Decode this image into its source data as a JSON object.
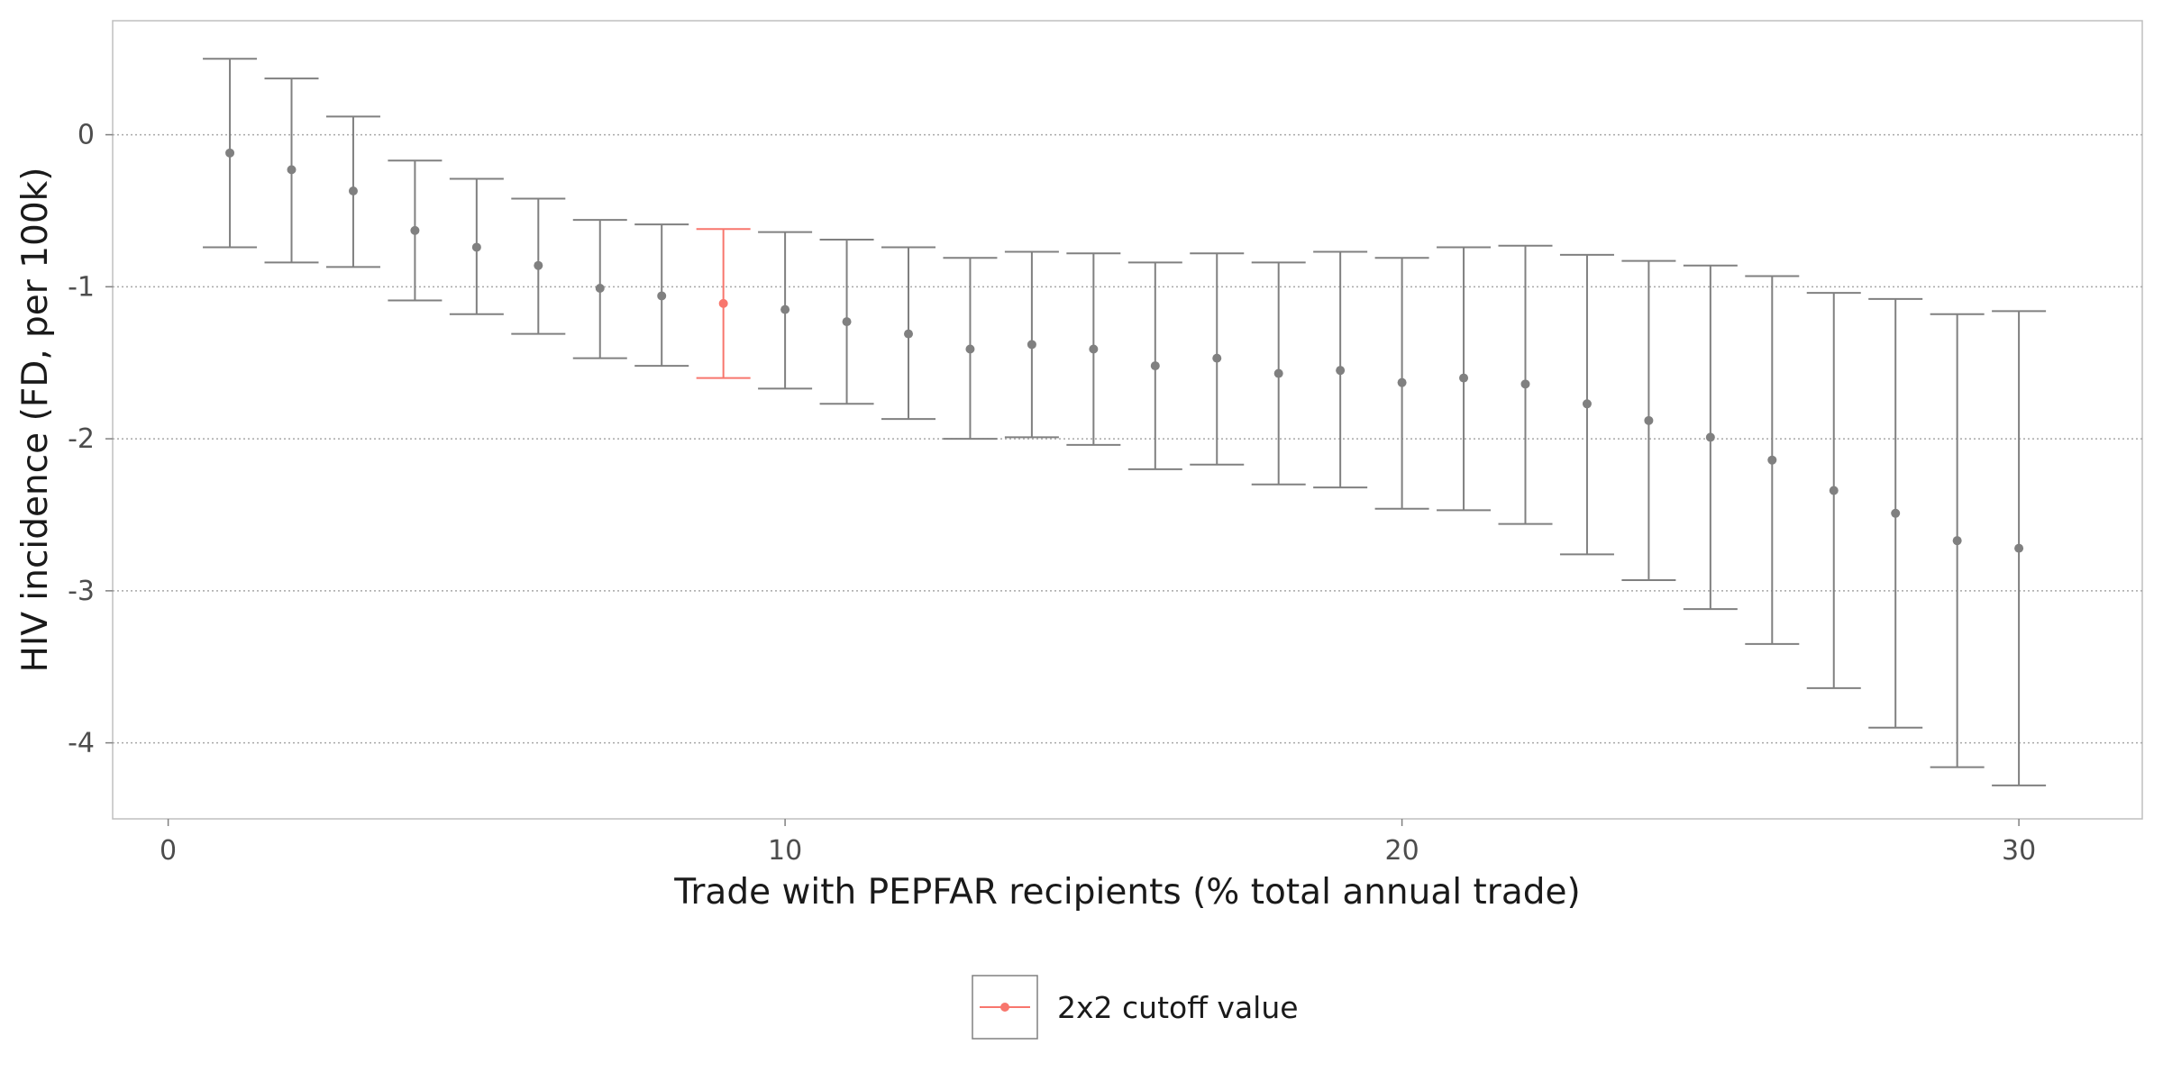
{
  "chart_data": {
    "type": "errorbar",
    "title": "",
    "xlabel": "Trade with PEPFAR recipients (% total annual trade)",
    "ylabel": "HIV incidence (FD, per 100k)",
    "xlim": [
      -0.9,
      32
    ],
    "ylim": [
      -4.5,
      0.75
    ],
    "x_ticks": [
      0,
      10,
      20,
      30
    ],
    "y_ticks": [
      0,
      -1,
      -2,
      -3,
      -4
    ],
    "grid": "horizontal dotted at major y ticks",
    "legend": {
      "position": "bottom-center",
      "entries": [
        "2x2 cutoff value"
      ]
    },
    "highlight_x": 9,
    "colors": {
      "normal": "#808080",
      "highlight": "#f8766d",
      "grid": "#a8a8a8",
      "panel_border": "#bfbfbf"
    },
    "points": [
      {
        "x": 1,
        "y": -0.12,
        "lower": -0.74,
        "upper": 0.5
      },
      {
        "x": 2,
        "y": -0.23,
        "lower": -0.84,
        "upper": 0.37
      },
      {
        "x": 3,
        "y": -0.37,
        "lower": -0.87,
        "upper": 0.12
      },
      {
        "x": 4,
        "y": -0.63,
        "lower": -1.09,
        "upper": -0.17
      },
      {
        "x": 5,
        "y": -0.74,
        "lower": -1.18,
        "upper": -0.29
      },
      {
        "x": 6,
        "y": -0.86,
        "lower": -1.31,
        "upper": -0.42
      },
      {
        "x": 7,
        "y": -1.01,
        "lower": -1.47,
        "upper": -0.56
      },
      {
        "x": 8,
        "y": -1.06,
        "lower": -1.52,
        "upper": -0.59
      },
      {
        "x": 9,
        "y": -1.11,
        "lower": -1.6,
        "upper": -0.62
      },
      {
        "x": 10,
        "y": -1.15,
        "lower": -1.67,
        "upper": -0.64
      },
      {
        "x": 11,
        "y": -1.23,
        "lower": -1.77,
        "upper": -0.69
      },
      {
        "x": 12,
        "y": -1.31,
        "lower": -1.87,
        "upper": -0.74
      },
      {
        "x": 13,
        "y": -1.41,
        "lower": -2.0,
        "upper": -0.81
      },
      {
        "x": 14,
        "y": -1.38,
        "lower": -1.99,
        "upper": -0.77
      },
      {
        "x": 15,
        "y": -1.41,
        "lower": -2.04,
        "upper": -0.78
      },
      {
        "x": 16,
        "y": -1.52,
        "lower": -2.2,
        "upper": -0.84
      },
      {
        "x": 17,
        "y": -1.47,
        "lower": -2.17,
        "upper": -0.78
      },
      {
        "x": 18,
        "y": -1.57,
        "lower": -2.3,
        "upper": -0.84
      },
      {
        "x": 19,
        "y": -1.55,
        "lower": -2.32,
        "upper": -0.77
      },
      {
        "x": 20,
        "y": -1.63,
        "lower": -2.46,
        "upper": -0.81
      },
      {
        "x": 21,
        "y": -1.6,
        "lower": -2.47,
        "upper": -0.74
      },
      {
        "x": 22,
        "y": -1.64,
        "lower": -2.56,
        "upper": -0.73
      },
      {
        "x": 23,
        "y": -1.77,
        "lower": -2.76,
        "upper": -0.79
      },
      {
        "x": 24,
        "y": -1.88,
        "lower": -2.93,
        "upper": -0.83
      },
      {
        "x": 25,
        "y": -1.99,
        "lower": -3.12,
        "upper": -0.86
      },
      {
        "x": 26,
        "y": -2.14,
        "lower": -3.35,
        "upper": -0.93
      },
      {
        "x": 27,
        "y": -2.34,
        "lower": -3.64,
        "upper": -1.04
      },
      {
        "x": 28,
        "y": -2.49,
        "lower": -3.9,
        "upper": -1.08
      },
      {
        "x": 29,
        "y": -2.67,
        "lower": -4.16,
        "upper": -1.18
      },
      {
        "x": 30,
        "y": -2.72,
        "lower": -4.28,
        "upper": -1.16
      }
    ]
  }
}
